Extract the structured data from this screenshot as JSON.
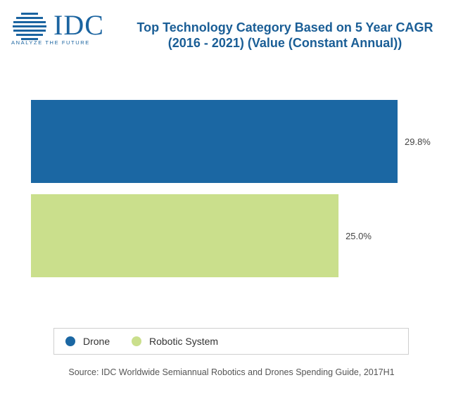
{
  "logo": {
    "text": "IDC",
    "tagline": "ANALYZE THE FUTURE"
  },
  "title_line1": "Top Technology Category Based on 5 Year CAGR",
  "title_line2": "(2016 - 2021) (Value (Constant Annual))",
  "source": "Source: IDC Worldwide Semiannual Robotics and Drones Spending Guide, 2017H1",
  "chart_data": {
    "type": "bar",
    "orientation": "horizontal",
    "categories": [
      "Drone",
      "Robotic System"
    ],
    "values": [
      29.8,
      25.0
    ],
    "value_labels": [
      "29.8%",
      "25.0%"
    ],
    "colors": [
      "#1b67a3",
      "#cadf8c"
    ],
    "title": "Top Technology Category Based on 5 Year CAGR (2016 - 2021) (Value (Constant Annual))",
    "xlabel": "",
    "ylabel": "",
    "xlim": [
      0,
      30
    ],
    "grid": false,
    "legend": [
      "Drone",
      "Robotic System"
    ],
    "legend_placement": "bottom"
  }
}
